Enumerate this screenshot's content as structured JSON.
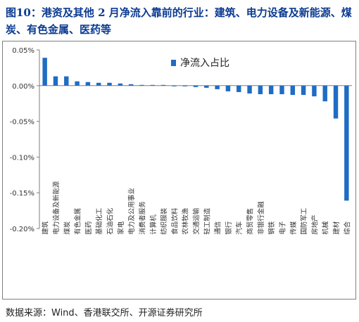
{
  "title": "图10：港资及其他 2 月净流入靠前的行业：建筑、电力设备及新能源、煤炭、有色金属、医药等",
  "source": "数据来源：Wind、香港联交所、开源证券研究所",
  "colors": {
    "bar": "#1f6cc4",
    "title": "#0b3b91",
    "axis": "#7f7f7f"
  },
  "chart_data": {
    "type": "bar",
    "legend": "净流入占比",
    "legend_position": "top-center",
    "grid": false,
    "ylim": [
      -0.2,
      0.05
    ],
    "yticks": [
      "0.05%",
      "0.00%",
      "-0.05%",
      "-0.10%",
      "-0.15%",
      "-0.20%"
    ],
    "categories": [
      "建筑",
      "电力设备及新能源",
      "煤炭",
      "有色金属",
      "医药",
      "基础化工",
      "石油石化",
      "家电",
      "电力及公用事业",
      "消费者服务",
      "计算机",
      "纺织服装",
      "食品饮料",
      "农林牧渔",
      "交通运输",
      "轻工制造",
      "通信",
      "银行",
      "汽车",
      "商贸零售",
      "非银行金融",
      "钢铁",
      "电子",
      "传媒",
      "国防军工",
      "房地产",
      "机械",
      "建材",
      "综合"
    ],
    "values": [
      0.039,
      0.013,
      0.013,
      0.006,
      0.005,
      0.004,
      0.004,
      0.003,
      0.002,
      0.001,
      0.0005,
      0.0,
      -0.0005,
      -0.001,
      -0.002,
      -0.003,
      -0.005,
      -0.008,
      -0.009,
      -0.011,
      -0.012,
      -0.012,
      -0.012,
      -0.013,
      -0.013,
      -0.015,
      -0.022,
      -0.046,
      -0.161
    ]
  }
}
